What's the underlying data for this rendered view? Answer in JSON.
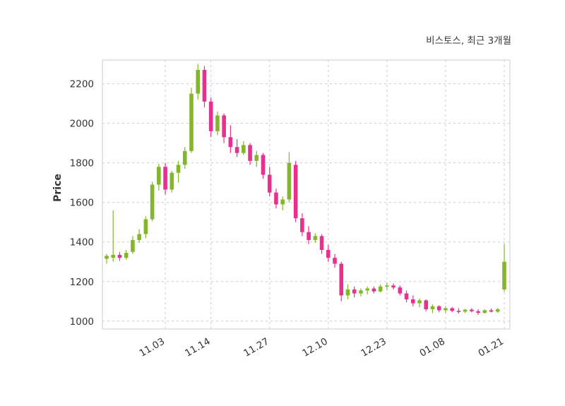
{
  "chart_data": {
    "type": "candlestick",
    "title": "비스토스, 최근 3개월",
    "ylabel": "Price",
    "y_ticks": [
      1000,
      1200,
      1400,
      1600,
      1800,
      2000,
      2200
    ],
    "ylim": [
      960,
      2320
    ],
    "x_tick_labels": [
      "11.03",
      "11.14",
      "11.27",
      "12.10",
      "12.23",
      "01.08",
      "01.21"
    ],
    "x_tick_indices": [
      9,
      16,
      25,
      34,
      43,
      52,
      61
    ],
    "grid": "dashed",
    "legend": "none",
    "colors": {
      "up": "#84b62c",
      "down": "#e8308f",
      "grid": "#cccccc",
      "spine": "#d6d6d6",
      "tick_text": "#333333",
      "title_text": "#3a3a3a",
      "background": "#ffffff"
    },
    "candles_format": [
      "open",
      "high",
      "low",
      "close"
    ],
    "candles": [
      [
        1315,
        1340,
        1290,
        1330
      ],
      [
        1320,
        1560,
        1300,
        1335
      ],
      [
        1335,
        1350,
        1305,
        1320
      ],
      [
        1320,
        1360,
        1310,
        1345
      ],
      [
        1350,
        1430,
        1340,
        1410
      ],
      [
        1410,
        1465,
        1395,
        1440
      ],
      [
        1440,
        1530,
        1420,
        1515
      ],
      [
        1515,
        1705,
        1505,
        1690
      ],
      [
        1690,
        1795,
        1660,
        1780
      ],
      [
        1780,
        1800,
        1640,
        1665
      ],
      [
        1665,
        1760,
        1650,
        1750
      ],
      [
        1750,
        1810,
        1700,
        1790
      ],
      [
        1790,
        1880,
        1770,
        1860
      ],
      [
        1860,
        2180,
        1850,
        2150
      ],
      [
        2150,
        2300,
        2120,
        2270
      ],
      [
        2270,
        2290,
        2080,
        2110
      ],
      [
        2110,
        2130,
        1930,
        1960
      ],
      [
        1960,
        2060,
        1940,
        2040
      ],
      [
        2040,
        2050,
        1900,
        1930
      ],
      [
        1930,
        1990,
        1850,
        1880
      ],
      [
        1880,
        1920,
        1830,
        1850
      ],
      [
        1850,
        1910,
        1840,
        1890
      ],
      [
        1890,
        1900,
        1790,
        1810
      ],
      [
        1810,
        1860,
        1780,
        1840
      ],
      [
        1840,
        1850,
        1720,
        1740
      ],
      [
        1740,
        1780,
        1630,
        1650
      ],
      [
        1650,
        1670,
        1570,
        1590
      ],
      [
        1590,
        1630,
        1560,
        1615
      ],
      [
        1615,
        1855,
        1600,
        1800
      ],
      [
        1790,
        1810,
        1500,
        1520
      ],
      [
        1520,
        1545,
        1430,
        1450
      ],
      [
        1450,
        1480,
        1390,
        1410
      ],
      [
        1410,
        1445,
        1395,
        1430
      ],
      [
        1430,
        1440,
        1340,
        1360
      ],
      [
        1360,
        1385,
        1300,
        1320
      ],
      [
        1320,
        1340,
        1270,
        1290
      ],
      [
        1290,
        1300,
        1100,
        1130
      ],
      [
        1130,
        1185,
        1110,
        1160
      ],
      [
        1160,
        1175,
        1120,
        1140
      ],
      [
        1140,
        1165,
        1125,
        1155
      ],
      [
        1155,
        1175,
        1135,
        1165
      ],
      [
        1165,
        1175,
        1140,
        1150
      ],
      [
        1150,
        1185,
        1145,
        1175
      ],
      [
        1175,
        1195,
        1155,
        1180
      ],
      [
        1180,
        1190,
        1160,
        1170
      ],
      [
        1170,
        1180,
        1130,
        1140
      ],
      [
        1140,
        1155,
        1095,
        1110
      ],
      [
        1110,
        1130,
        1075,
        1090
      ],
      [
        1090,
        1115,
        1070,
        1105
      ],
      [
        1105,
        1110,
        1050,
        1060
      ],
      [
        1060,
        1085,
        1040,
        1075
      ],
      [
        1075,
        1080,
        1045,
        1055
      ],
      [
        1055,
        1075,
        1040,
        1065
      ],
      [
        1065,
        1072,
        1045,
        1052
      ],
      [
        1052,
        1065,
        1038,
        1048
      ],
      [
        1048,
        1062,
        1040,
        1058
      ],
      [
        1058,
        1066,
        1044,
        1050
      ],
      [
        1050,
        1060,
        1032,
        1042
      ],
      [
        1042,
        1060,
        1038,
        1055
      ],
      [
        1055,
        1064,
        1044,
        1048
      ],
      [
        1048,
        1066,
        1042,
        1060
      ],
      [
        1160,
        1390,
        1148,
        1300
      ]
    ]
  }
}
